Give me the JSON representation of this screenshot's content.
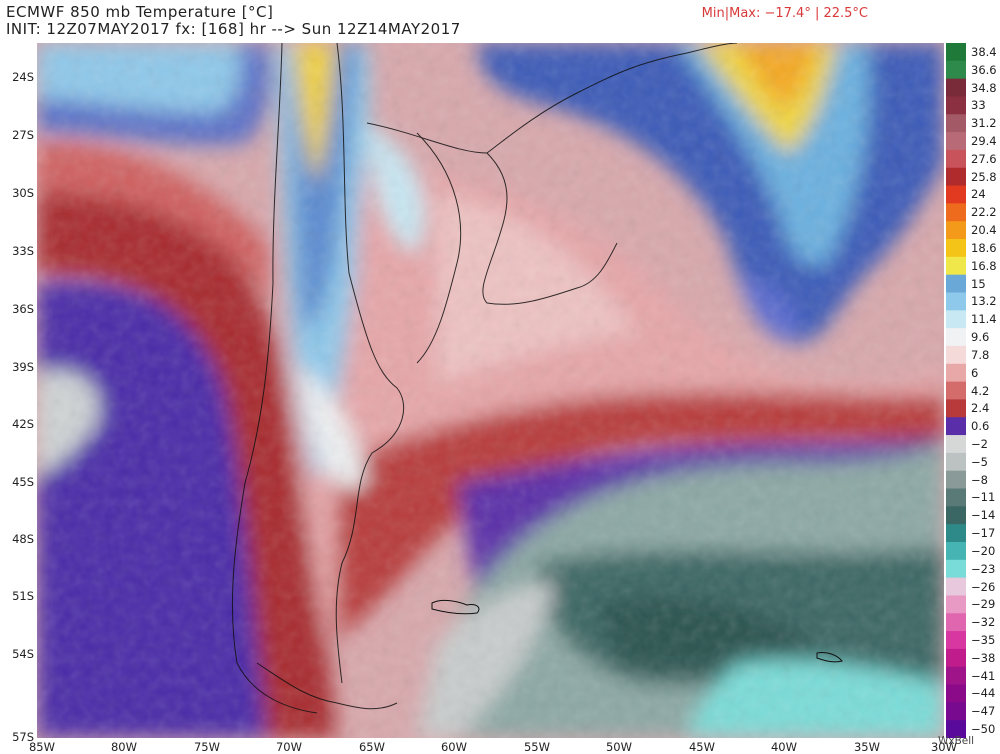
{
  "header": {
    "title_line1": "ECMWF 850 mb Temperature [°C]",
    "title_line2": "INIT: 12Z07MAY2017 fx: [168] hr --> Sun 12Z14MAY2017",
    "minmax": "Min|Max: −17.4° | 22.5°C"
  },
  "axes": {
    "lat_labels": [
      "24S",
      "27S",
      "30S",
      "33S",
      "36S",
      "39S",
      "42S",
      "45S",
      "48S",
      "51S",
      "54S",
      "57S"
    ],
    "lon_labels": [
      "85W",
      "80W",
      "75W",
      "70W",
      "65W",
      "60W",
      "55W",
      "50W",
      "45W",
      "40W",
      "35W",
      "30W"
    ]
  },
  "colorbar": {
    "labels": [
      "38.4",
      "36.6",
      "34.8",
      "33",
      "31.2",
      "29.4",
      "27.6",
      "25.8",
      "24",
      "22.2",
      "20.4",
      "18.6",
      "16.8",
      "15",
      "13.2",
      "11.4",
      "9.6",
      "7.8",
      "6",
      "4.2",
      "2.4",
      "0.6",
      "−2",
      "−5",
      "−8",
      "−11",
      "−14",
      "−17",
      "−20",
      "−23",
      "−26",
      "−29",
      "−32",
      "−35",
      "−38",
      "−41",
      "−44",
      "−47",
      "−50"
    ],
    "colors": [
      "#1f7a3a",
      "#2e8a4a",
      "#7a2b3a",
      "#8a3040",
      "#a35a66",
      "#b86b77",
      "#c9535a",
      "#b02c2c",
      "#e23a20",
      "#ee6a1c",
      "#f39a1a",
      "#f5c419",
      "#f0e84a",
      "#6aa8d8",
      "#8ec8ea",
      "#c8e8f4",
      "#f0f2f4",
      "#f5dada",
      "#e8a8a8",
      "#d46c6c",
      "#b83a3a",
      "#5a2ea8",
      "#d6d8d8",
      "#bcc2c2",
      "#8a9a98",
      "#5a7a78",
      "#3a6664",
      "#2e8a88",
      "#46b4b2",
      "#7adcd8",
      "#e8c8dc",
      "#e89ac4",
      "#e066b0",
      "#d836a0",
      "#c01c8c",
      "#a0148a",
      "#8a0a8a",
      "#780a90",
      "#5a0a9a"
    ]
  },
  "credit": "WxBell"
}
